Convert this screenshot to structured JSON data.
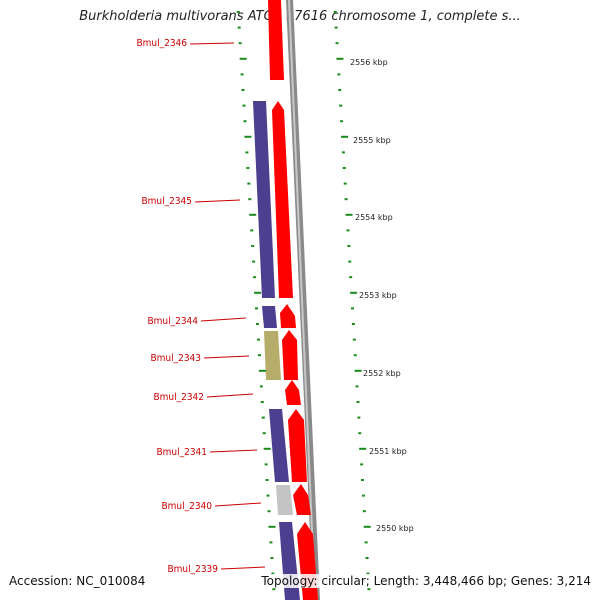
{
  "title": "Burkholderia multivorans ATCC 17616 chromosome 1, complete s...",
  "accession_text": "Accession: NC_010084",
  "summary_text": "Topology: circular; Length: 3,448,466 bp; Genes: 3,214",
  "colors": {
    "forward_gene": "#ff0000",
    "reverse_gene": "#4d3f8f",
    "reverse_gene_alt": "#b6ad6a",
    "reverse_gene_grey": "#c4c4c4",
    "backbone": "#8a8a8a",
    "tick": "#1a8a1a",
    "label": "#cc0000"
  },
  "gene_labels": [
    "Bmul_2346",
    "Bmul_2345",
    "Bmul_2344",
    "Bmul_2343",
    "Bmul_2342",
    "Bmul_2341",
    "Bmul_2340",
    "Bmul_2339"
  ],
  "kbp_labels": [
    "2556 kbp",
    "2555 kbp",
    "2554 kbp",
    "2553 kbp",
    "2552 kbp",
    "2551 kbp",
    "2550 kbp"
  ]
}
